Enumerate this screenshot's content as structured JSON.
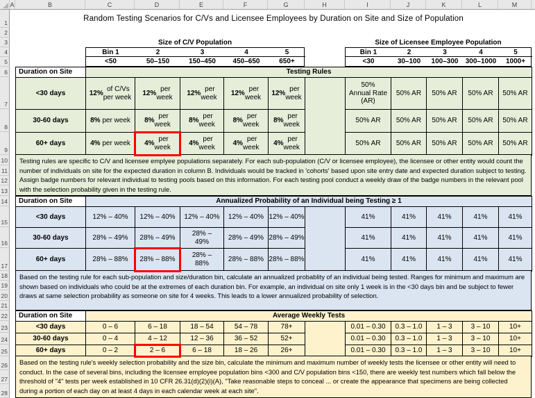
{
  "title": "Random Testing Scenarios for C/Vs and Licensee Employees by Duration on Site and Size of Population",
  "grid": {
    "columns": [
      "A",
      "B",
      "C",
      "D",
      "E",
      "F",
      "G",
      "H",
      "I",
      "J",
      "K",
      "L",
      "M"
    ],
    "rows": [
      "1",
      "2",
      "3",
      "4",
      "5",
      "6",
      "7",
      "8",
      "9",
      "10",
      "11",
      "12",
      "13",
      "14",
      "15",
      "16",
      "17",
      "18",
      "19",
      "20",
      "21",
      "22",
      "23",
      "24",
      "25",
      "26",
      "27",
      "28"
    ]
  },
  "population_headers": {
    "cv": {
      "title": "Size of C/V Population",
      "bins": [
        "Bin 1",
        "2",
        "3",
        "4",
        "5"
      ],
      "ranges": [
        "<50",
        "50–150",
        "150–450",
        "450–650",
        "650+"
      ]
    },
    "licensee": {
      "title": "Size of Licensee Employee Population",
      "bins": [
        "Bin 1",
        "2",
        "3",
        "4",
        "5"
      ],
      "ranges": [
        "<30",
        "30–100",
        "100–300",
        "300–1000",
        "1000+"
      ]
    }
  },
  "sections": [
    {
      "name": "testing-rules",
      "row_header": "Duration on Site",
      "band_title": "Testing Rules",
      "fill": "#e6eeda",
      "rows": [
        {
          "label": "<30 days",
          "cv": [
            {
              "b": "12%",
              "t": " of C/Vs\nper week"
            },
            {
              "b": "12%",
              "t": " per\nweek"
            },
            {
              "b": "12%",
              "t": " per\nweek"
            },
            {
              "b": "12%",
              "t": " per\nweek"
            },
            {
              "b": "12%",
              "t": " per\nweek"
            }
          ],
          "le": [
            {
              "t": "50%\nAnnual Rate\n(AR)"
            },
            {
              "t": "50% AR"
            },
            {
              "t": "50% AR"
            },
            {
              "t": "50% AR"
            },
            {
              "t": "50% AR"
            }
          ]
        },
        {
          "label": "30-60 days",
          "cv": [
            {
              "b": "8%",
              "t": " per week"
            },
            {
              "b": "8%",
              "t": " per\nweek"
            },
            {
              "b": "8%",
              "t": " per\nweek"
            },
            {
              "b": "8%",
              "t": " per\nweek"
            },
            {
              "b": "8%",
              "t": " per\nweek"
            }
          ],
          "le": [
            {
              "t": "50% AR"
            },
            {
              "t": "50% AR"
            },
            {
              "t": "50% AR"
            },
            {
              "t": "50% AR"
            },
            {
              "t": "50% AR"
            }
          ]
        },
        {
          "label": "60+ days",
          "cv": [
            {
              "b": "4%",
              "t": " per week"
            },
            {
              "b": "4%",
              "t": " per\nweek"
            },
            {
              "b": "4%",
              "t": " per\nweek"
            },
            {
              "b": "4%",
              "t": " per\nweek"
            },
            {
              "b": "4%",
              "t": " per\nweek"
            }
          ],
          "le": [
            {
              "t": "50% AR"
            },
            {
              "t": "50% AR"
            },
            {
              "t": "50% AR"
            },
            {
              "t": "50% AR"
            },
            {
              "t": "50% AR"
            }
          ]
        }
      ],
      "note": "Testing rules are specific to C/V and licensee emplyee populations separately. For each sub-population (C/V or licensee employee), the licensee or other entity would count the number of individuals on site for the expected duration in column B. Individuals would be tracked in 'cohorts' based upon site entry date and expected duration subject to testing. Assign badge numbers for relevant individual to testing pools based on this information. For each testing pool conduct a weekly draw of the badge numbers in the relevant pool with the selection probability given in the testing rule."
    },
    {
      "name": "annualized-probability",
      "row_header": "Duration on Site",
      "band_title": "Annualized Probability of an Individual being Testing ≥ 1",
      "fill": "#dbe5f1",
      "rows": [
        {
          "label": "<30 days",
          "cv": [
            {
              "t": "12% – 40%"
            },
            {
              "t": "12% – 40%"
            },
            {
              "t": "12% – 40%"
            },
            {
              "t": "12% – 40%"
            },
            {
              "t": "12% – 40%"
            }
          ],
          "le": [
            {
              "t": "41%"
            },
            {
              "t": "41%"
            },
            {
              "t": "41%"
            },
            {
              "t": "41%"
            },
            {
              "t": "41%"
            }
          ]
        },
        {
          "label": "30-60 days",
          "cv": [
            {
              "t": "28% – 49%"
            },
            {
              "t": "28% – 49%"
            },
            {
              "t": "28% –\n49%"
            },
            {
              "t": "28% – 49%"
            },
            {
              "t": "28% – 49%"
            }
          ],
          "le": [
            {
              "t": "41%"
            },
            {
              "t": "41%"
            },
            {
              "t": "41%"
            },
            {
              "t": "41%"
            },
            {
              "t": "41%"
            }
          ]
        },
        {
          "label": "60+ days",
          "cv": [
            {
              "t": "28% – 88%"
            },
            {
              "t": "28% – 88%"
            },
            {
              "t": "28% –\n88%"
            },
            {
              "t": "28% – 88%"
            },
            {
              "t": "28% – 88%"
            }
          ],
          "le": [
            {
              "t": "41%"
            },
            {
              "t": "41%"
            },
            {
              "t": "41%"
            },
            {
              "t": "41%"
            },
            {
              "t": "41%"
            }
          ]
        }
      ],
      "note": "Based on the testing rule for each sub-population and size/duration bin, calculate an annualized probablity of an individual being tested. Ranges for minimum and maximum are shown based on individuals who could be at the extremes of each duration bin. For example, an individual on site only 1 week is in the <30 days bin and be subject to fewer draws at same selection probability as someone on site for 4 weeks. This leads to a lower annualized probability of selection."
    },
    {
      "name": "average-weekly-tests",
      "row_header": "Duration on Site",
      "band_title": "Average Weekly Tests",
      "fill": "#fdf2cc",
      "rows": [
        {
          "label": "<30 days",
          "cv": [
            {
              "t": "0 – 6"
            },
            {
              "t": "6 – 18"
            },
            {
              "t": "18 – 54"
            },
            {
              "t": "54 – 78"
            },
            {
              "t": "78+"
            }
          ],
          "le": [
            {
              "t": "0.01 – 0.30"
            },
            {
              "t": "0.3 – 1.0"
            },
            {
              "t": "1 – 3"
            },
            {
              "t": "3 – 10"
            },
            {
              "t": "10+"
            }
          ]
        },
        {
          "label": "30-60 days",
          "cv": [
            {
              "t": "0 – 4"
            },
            {
              "t": "4 – 12"
            },
            {
              "t": "12 – 36"
            },
            {
              "t": "36 – 52"
            },
            {
              "t": "52+"
            }
          ],
          "le": [
            {
              "t": "0.01 – 0.30"
            },
            {
              "t": "0.3 – 1.0"
            },
            {
              "t": "1 – 3"
            },
            {
              "t": "3 – 10"
            },
            {
              "t": "10+"
            }
          ]
        },
        {
          "label": "60+ days",
          "cv": [
            {
              "t": "0 – 2"
            },
            {
              "t": "2 – 6"
            },
            {
              "t": "6 – 18"
            },
            {
              "t": "18 – 26"
            },
            {
              "t": "26+"
            }
          ],
          "le": [
            {
              "t": "0.01 – 0.30"
            },
            {
              "t": "0.3 – 1.0"
            },
            {
              "t": "1 – 3"
            },
            {
              "t": "3 – 10"
            },
            {
              "t": "10+"
            }
          ]
        }
      ],
      "note": "Based on the testing rule's weekly selection probability and the size bin, calculate the minimum and maximum number of weekly tests the licensee or other entity will need to conduct. In the case of several bins, including the licensee employee population bins <300 and C/V population bins <150, there are weekly test numbers which fall below the threshold of \"4\" tests per week established in 10 CFR 26.31(d)(2)(i)(A), \"Take reasonable steps to conceal ... or create the appearance that specimens are being collected during a portion of each day on at least 4 days in each calendar week at each site\"."
    }
  ],
  "highlights": [
    {
      "section": 0,
      "row": 2,
      "cv_col": 1
    },
    {
      "section": 1,
      "row": 2,
      "cv_col": 1
    },
    {
      "section": 2,
      "row": 2,
      "cv_col": 1
    }
  ],
  "colors": {
    "section_green": "#e6eeda",
    "section_blue": "#dbe5f1",
    "section_tan": "#fdf2cc",
    "highlight_red": "#ff0000",
    "header_gray": "#e8e8e8"
  }
}
